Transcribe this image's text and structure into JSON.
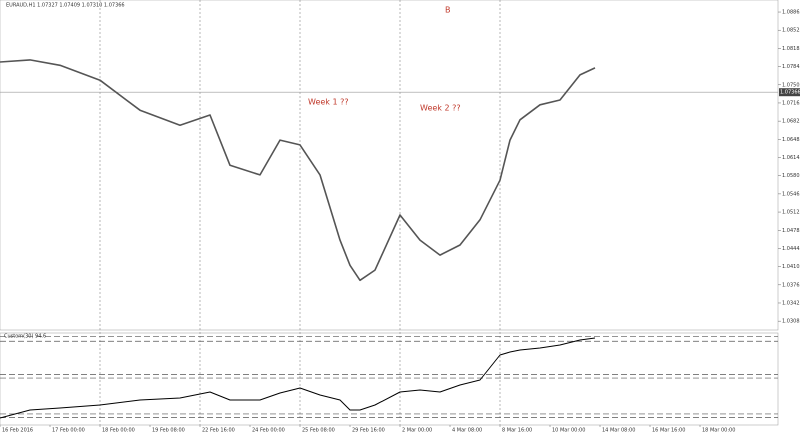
{
  "chart_data": [
    {
      "type": "line",
      "title": "EURAUD,H1  1.07327 1.07409 1.07310 1.07366",
      "annotations": [
        "B",
        "Week 1 ??",
        "Week 2 ??"
      ],
      "last_price": 1.07366,
      "x": [
        0,
        1.5,
        3,
        5,
        7,
        9,
        10.5,
        11.5,
        13,
        14,
        15,
        16,
        17,
        17.5,
        18,
        18.75,
        20,
        21,
        22,
        23,
        24,
        25,
        25.5,
        26,
        27,
        28,
        29,
        29.75
      ],
      "series": [
        {
          "name": "EURAUD,H1",
          "color": "#555555",
          "values": [
            1.0793,
            1.0797,
            1.0787,
            1.0759,
            1.0703,
            1.0675,
            1.0694,
            1.06,
            1.0582,
            1.0647,
            1.0638,
            1.0582,
            1.046,
            1.0413,
            1.0385,
            1.0404,
            1.0507,
            1.046,
            1.0432,
            1.0451,
            1.0498,
            1.0572,
            1.0647,
            1.0685,
            1.0713,
            1.0722,
            1.0769,
            1.0782
          ]
        }
      ],
      "xlim": [
        0,
        38.9
      ],
      "xticks": [
        {
          "value": 0,
          "label": "16 Feb 2016"
        },
        {
          "value": 2.5,
          "label": "17 Feb 00:00"
        },
        {
          "value": 5,
          "label": "18 Feb 00:00"
        },
        {
          "value": 7.5,
          "label": "19 Feb 08:00"
        },
        {
          "value": 10,
          "label": "22 Feb 16:00"
        },
        {
          "value": 12.5,
          "label": "24 Feb 00:00"
        },
        {
          "value": 15,
          "label": "25 Feb 08:00"
        },
        {
          "value": 17.5,
          "label": "29 Feb 16:00"
        },
        {
          "value": 20,
          "label": "2 Mar 00:00"
        },
        {
          "value": 22.5,
          "label": "4 Mar 08:00"
        },
        {
          "value": 25,
          "label": "8 Mar 16:00"
        },
        {
          "value": 27.5,
          "label": "10 Mar 00:00"
        },
        {
          "value": 30,
          "label": "14 Mar 08:00"
        },
        {
          "value": 32.5,
          "label": "16 Mar 16:00"
        },
        {
          "value": 35,
          "label": "18 Mar 00:00"
        }
      ],
      "ylim": [
        1.0292,
        1.0909
      ],
      "yticks": [
        1.08865,
        1.08525,
        1.08185,
        1.07845,
        1.07505,
        1.07165,
        1.06825,
        1.06485,
        1.06145,
        1.05805,
        1.05465,
        1.05125,
        1.04785,
        1.04445,
        1.04105,
        1.03765,
        1.03425,
        1.03085
      ],
      "grid": false
    },
    {
      "type": "line",
      "title": "Custom(30) 94.6",
      "x": [
        0,
        1.5,
        3,
        5,
        7,
        9,
        10.5,
        11.5,
        13,
        14,
        15,
        16,
        17,
        17.5,
        18,
        18.75,
        20,
        21,
        22,
        23,
        24,
        25,
        25.5,
        26,
        27,
        28,
        29,
        29.75
      ],
      "series": [
        {
          "name": "Custom",
          "color": "#000000",
          "values": [
            7.6,
            16.3,
            18.5,
            21.7,
            27.2,
            29.3,
            35.9,
            27.2,
            27.2,
            34.8,
            40.2,
            32.6,
            27.2,
            16.3,
            16.3,
            21.7,
            35.9,
            38,
            35.9,
            43.5,
            48.9,
            76.1,
            79.3,
            81.5,
            83.7,
            87,
            92.4,
            94.6
          ]
        }
      ],
      "xlim": [
        0,
        38.9
      ],
      "ylim": [
        0,
        100
      ],
      "levels": [
        96,
        91,
        55,
        51,
        12,
        8
      ]
    }
  ]
}
